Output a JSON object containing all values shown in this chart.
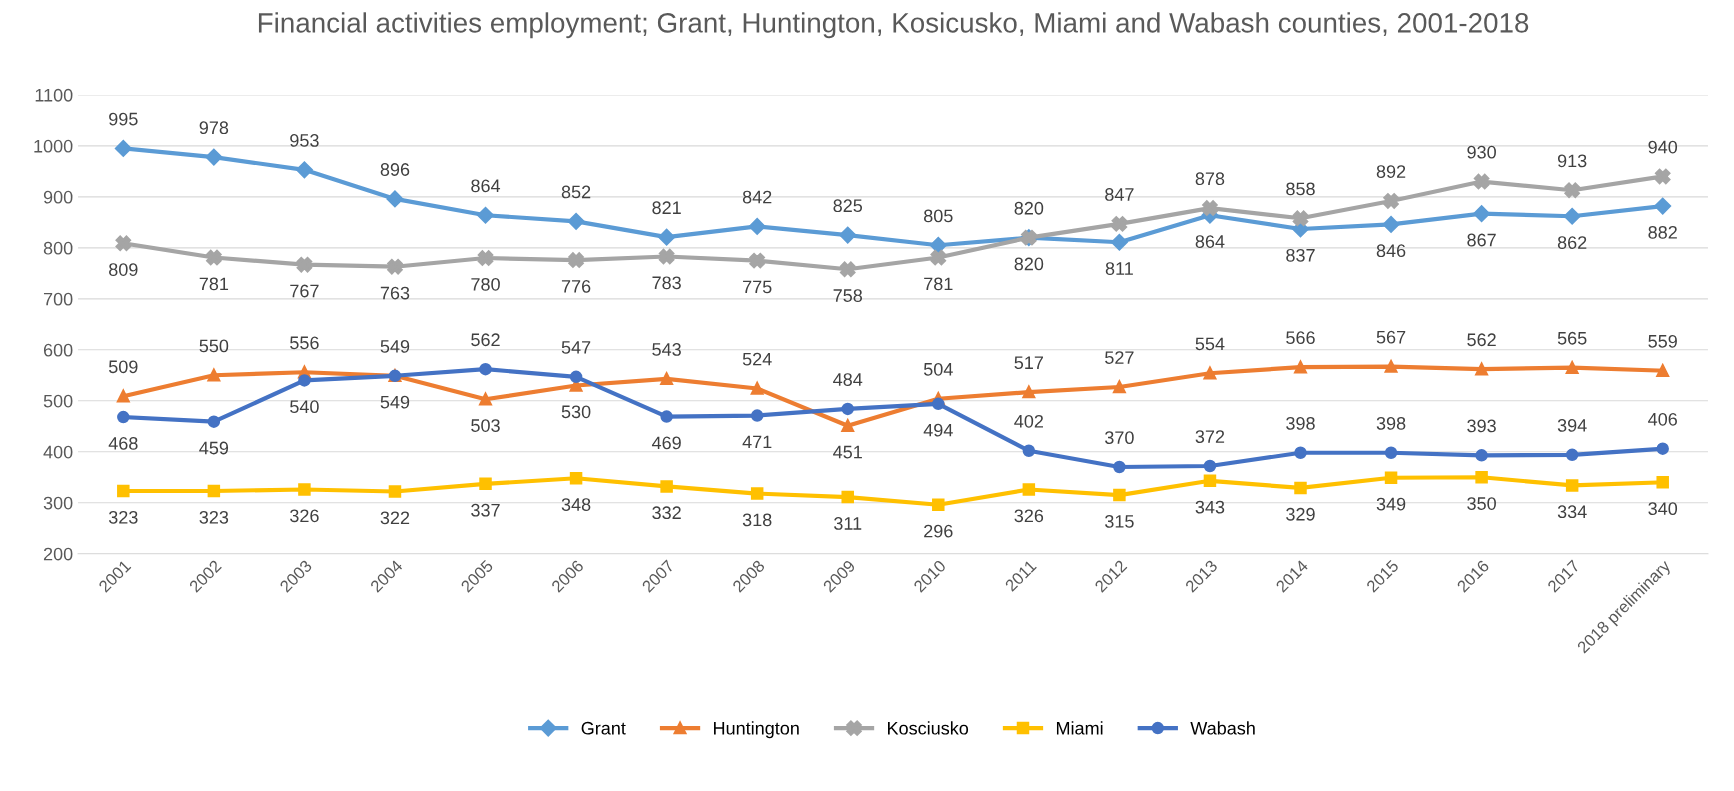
{
  "chart_data": {
    "type": "line",
    "title": "Financial activities employment; Grant, Huntington, Kosicusko, Miami and Wabash counties, 2001-2018",
    "categories": [
      "2001",
      "2002",
      "2003",
      "2004",
      "2005",
      "2006",
      "2007",
      "2008",
      "2009",
      "2010",
      "2011",
      "2012",
      "2013",
      "2014",
      "2015",
      "2016",
      "2017",
      "2018 preliminary"
    ],
    "series": [
      {
        "name": "Grant",
        "color": "#5b9bd5",
        "marker": "diamond",
        "values": [
          995,
          978,
          953,
          896,
          864,
          852,
          821,
          842,
          825,
          805,
          820,
          811,
          864,
          837,
          846,
          867,
          862,
          882
        ]
      },
      {
        "name": "Huntington",
        "color": "#ed7d31",
        "marker": "triangle",
        "values": [
          509,
          550,
          556,
          549,
          503,
          530,
          543,
          524,
          451,
          504,
          517,
          527,
          554,
          566,
          567,
          562,
          565,
          559
        ]
      },
      {
        "name": "Kosciusko",
        "color": "#a5a5a5",
        "marker": "cross",
        "values": [
          809,
          781,
          767,
          763,
          780,
          776,
          783,
          775,
          758,
          781,
          820,
          847,
          878,
          858,
          892,
          930,
          913,
          940
        ]
      },
      {
        "name": "Miami",
        "color": "#ffc000",
        "marker": "square",
        "values": [
          323,
          323,
          326,
          322,
          337,
          348,
          332,
          318,
          311,
          296,
          326,
          315,
          343,
          329,
          349,
          350,
          334,
          340
        ]
      },
      {
        "name": "Wabash",
        "color": "#4472c4",
        "marker": "circle",
        "values": [
          468,
          459,
          540,
          549,
          562,
          547,
          469,
          471,
          484,
          494,
          402,
          370,
          372,
          398,
          398,
          393,
          394,
          406
        ]
      }
    ],
    "ylim": [
      200,
      1100
    ],
    "yticks": [
      200,
      300,
      400,
      500,
      600,
      700,
      800,
      900,
      1000,
      1100
    ],
    "grid": "y",
    "legend": "bottom",
    "data_labels": true
  }
}
